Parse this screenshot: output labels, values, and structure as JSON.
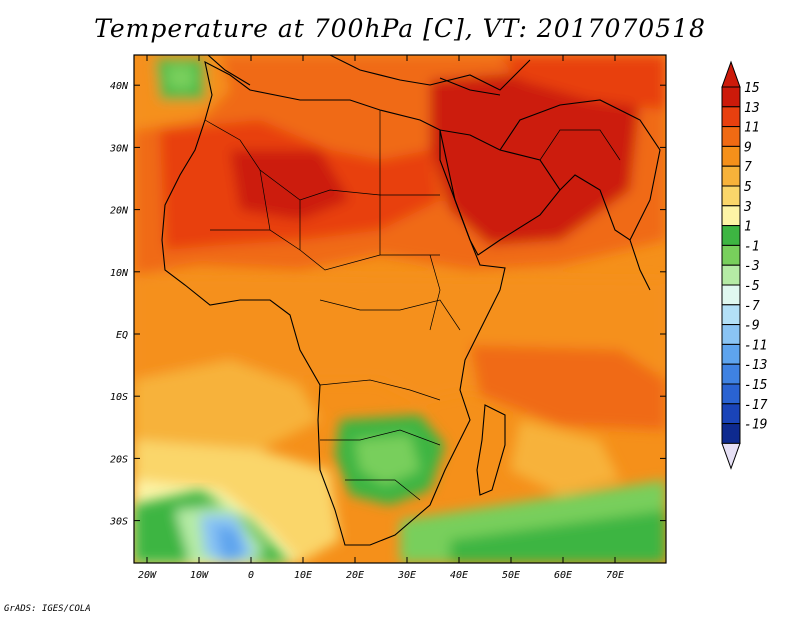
{
  "title": "Temperature at 700hPa [C], VT: 2017070518",
  "credit": "GrADS: IGES/COLA",
  "map": {
    "y_ticks": [
      {
        "label": "40N",
        "lat": 40
      },
      {
        "label": "30N",
        "lat": 30
      },
      {
        "label": "20N",
        "lat": 20
      },
      {
        "label": "10N",
        "lat": 10
      },
      {
        "label": "EQ",
        "lat": 0
      },
      {
        "label": "10S",
        "lat": -10
      },
      {
        "label": "20S",
        "lat": -20
      },
      {
        "label": "30S",
        "lat": -30
      }
    ],
    "x_ticks": [
      {
        "label": "20W",
        "lon": -20
      },
      {
        "label": "10W",
        "lon": -10
      },
      {
        "label": "0",
        "lon": 0
      },
      {
        "label": "10E",
        "lon": 10
      },
      {
        "label": "20E",
        "lon": 20
      },
      {
        "label": "30E",
        "lon": 30
      },
      {
        "label": "40E",
        "lon": 40
      },
      {
        "label": "50E",
        "lon": 50
      },
      {
        "label": "60E",
        "lon": 60
      },
      {
        "label": "70E",
        "lon": 70
      }
    ]
  },
  "colorbar": {
    "labels": [
      "15",
      "13",
      "11",
      "9",
      "7",
      "5",
      "3",
      "1",
      "-1",
      "-3",
      "-5",
      "-7",
      "-9",
      "-11",
      "-13",
      "-15",
      "-17",
      "-19"
    ],
    "colors": [
      "#cc1a0a",
      "#e8400f",
      "#f06a13",
      "#f5901a",
      "#f7b23a",
      "#fad66a",
      "#fdf4a6",
      "#3db542",
      "#78cf5c",
      "#b5eba5",
      "#e0f8f0",
      "#b3e0f7",
      "#8ac4f4",
      "#5ea4ee",
      "#3f82e2",
      "#2a63d2",
      "#1a44b8",
      "#0e2a8f",
      "#081877"
    ]
  }
}
